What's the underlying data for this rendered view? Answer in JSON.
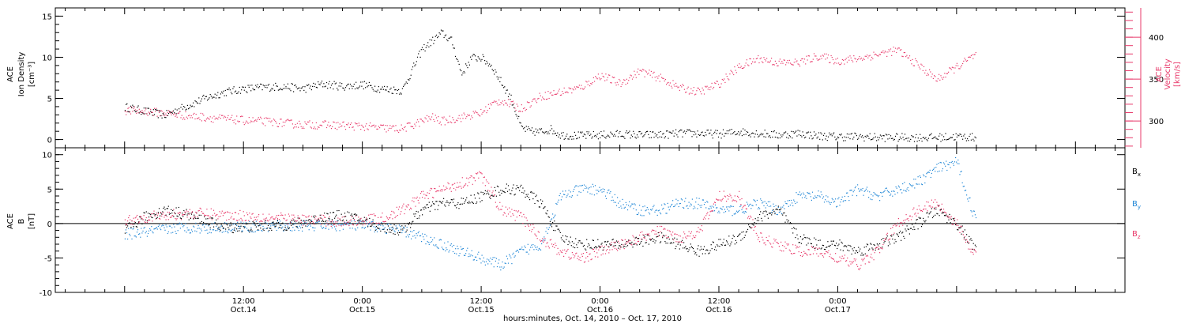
{
  "chart_data": [
    {
      "type": "scatter",
      "panel": "top",
      "y_left": {
        "label_lines": [
          "ACE",
          "Ion Density",
          "[cm⁻³]"
        ],
        "ylim": [
          -1,
          16
        ],
        "ticks": [
          0,
          5,
          10,
          15
        ]
      },
      "y_right": {
        "label_lines": [
          "ACE",
          "Velocity",
          "[km/s]"
        ],
        "ylim": [
          268,
          435
        ],
        "ticks": [
          300,
          350,
          400
        ],
        "color": "#e8396a"
      },
      "series": [
        {
          "axis": "left",
          "color": "#000000",
          "x_hours": [
            0,
            2,
            4,
            6,
            8,
            10,
            12,
            14,
            16,
            18,
            20,
            22,
            24,
            26,
            28,
            30,
            32,
            33,
            34,
            35,
            36,
            37,
            38,
            39,
            40,
            41,
            42,
            43,
            44,
            46,
            48,
            50,
            52,
            54,
            56,
            58,
            60,
            62,
            64,
            66,
            68,
            70,
            72,
            74,
            76,
            78,
            80,
            82,
            84,
            86
          ],
          "values": [
            4,
            3.5,
            3,
            4,
            5,
            5.8,
            6.2,
            6.4,
            6.5,
            6.2,
            6.8,
            6.5,
            6.7,
            6.2,
            6,
            11,
            13,
            12,
            8,
            10,
            10,
            9,
            7,
            5,
            1.5,
            1,
            1,
            1.3,
            0.6,
            0.5,
            0.6,
            0.7,
            0.6,
            0.6,
            0.8,
            0.8,
            0.7,
            1,
            0.8,
            0.6,
            0.8,
            0.5,
            0.4,
            0.4,
            0.3,
            0.3,
            0.3,
            0.3,
            0.4,
            0.3
          ]
        },
        {
          "axis": "right",
          "color": "#e8396a",
          "x_hours": [
            0,
            2,
            4,
            6,
            8,
            10,
            12,
            14,
            16,
            18,
            20,
            22,
            24,
            26,
            28,
            30,
            31,
            32,
            34,
            36,
            37,
            38,
            39,
            40,
            42,
            44,
            46,
            48,
            50,
            52,
            54,
            56,
            58,
            60,
            62,
            64,
            66,
            68,
            70,
            72,
            74,
            76,
            78,
            80,
            82,
            84,
            86
          ],
          "values": [
            313,
            312,
            310,
            307,
            305,
            303,
            301,
            300,
            298,
            296,
            296,
            295,
            294,
            292,
            291,
            300,
            305,
            300,
            305,
            310,
            320,
            325,
            320,
            315,
            330,
            335,
            340,
            355,
            345,
            360,
            352,
            340,
            335,
            345,
            365,
            375,
            370,
            370,
            378,
            372,
            375,
            380,
            385,
            368,
            350,
            365,
            380
          ]
        }
      ]
    },
    {
      "type": "scatter",
      "panel": "bottom",
      "y_left": {
        "label_lines": [
          "ACE",
          "B",
          "[nT]"
        ],
        "ylim": [
          -10,
          11
        ],
        "ticks": [
          -10,
          -5,
          0,
          5,
          10
        ]
      },
      "legend": [
        {
          "text": "B",
          "sub": "x",
          "color": "#000000"
        },
        {
          "text": "B",
          "sub": "y",
          "color": "#1f86d6"
        },
        {
          "text": "B",
          "sub": "z",
          "color": "#e8396a"
        }
      ],
      "series": [
        {
          "key": "Bx",
          "color": "#000000",
          "x_hours": [
            0,
            2,
            4,
            6,
            8,
            10,
            12,
            14,
            16,
            18,
            20,
            22,
            24,
            26,
            28,
            30,
            32,
            34,
            36,
            38,
            40,
            42,
            44,
            46,
            48,
            50,
            52,
            54,
            56,
            58,
            60,
            62,
            64,
            66,
            68,
            70,
            72,
            74,
            76,
            78,
            80,
            82,
            84,
            86
          ],
          "values": [
            -1,
            1,
            2,
            1.5,
            0.5,
            -0.5,
            -0.5,
            -0.3,
            -0.2,
            0.2,
            1,
            1.2,
            0.5,
            -0.5,
            -1,
            2,
            3,
            3,
            4,
            5,
            5,
            3,
            -2,
            -3,
            -3,
            -3,
            -2.5,
            -2,
            -3,
            -4,
            -3,
            -2,
            1,
            2,
            -2,
            -3,
            -3,
            -4,
            -3,
            -2,
            0,
            2,
            0,
            -4
          ]
        },
        {
          "key": "By",
          "color": "#1f86d6",
          "x_hours": [
            0,
            2,
            4,
            6,
            8,
            10,
            12,
            14,
            16,
            18,
            20,
            22,
            24,
            26,
            28,
            30,
            32,
            34,
            36,
            38,
            40,
            42,
            44,
            46,
            48,
            50,
            52,
            54,
            56,
            58,
            60,
            62,
            64,
            66,
            68,
            70,
            72,
            74,
            76,
            78,
            80,
            82,
            84,
            86
          ],
          "values": [
            -1.5,
            -1.2,
            -0.8,
            -0.5,
            -0.6,
            -0.5,
            -0.4,
            -0.4,
            -0.3,
            -0.3,
            -0.2,
            -0.2,
            -0.3,
            -0.5,
            -1,
            -2,
            -3,
            -4,
            -5,
            -6,
            -4,
            -3,
            4,
            5,
            5,
            3,
            2,
            2,
            3,
            3,
            2,
            2,
            3,
            2,
            4,
            4,
            3,
            5,
            4,
            5,
            6,
            8,
            9,
            0
          ]
        },
        {
          "key": "Bz",
          "color": "#e8396a",
          "x_hours": [
            0,
            2,
            4,
            6,
            8,
            10,
            12,
            14,
            16,
            18,
            20,
            22,
            24,
            26,
            28,
            30,
            32,
            34,
            36,
            38,
            40,
            42,
            44,
            46,
            48,
            50,
            52,
            54,
            56,
            58,
            60,
            62,
            64,
            66,
            68,
            70,
            72,
            74,
            76,
            78,
            80,
            82,
            84,
            86
          ],
          "values": [
            0.5,
            1,
            1.2,
            1.5,
            1.5,
            1.3,
            1.2,
            1,
            0.8,
            0.6,
            0.5,
            0.3,
            0.6,
            0.8,
            2,
            4,
            5,
            6,
            7,
            2,
            1,
            -2,
            -4,
            -5,
            -4,
            -3,
            -2,
            -1,
            -2,
            -1,
            4,
            4,
            -2,
            -3,
            -4,
            -4,
            -5,
            -6,
            -4,
            0,
            2,
            3,
            0,
            -5
          ]
        }
      ]
    }
  ],
  "x_axis": {
    "range_hours": [
      -7,
      101
    ],
    "major_ticks": [
      {
        "hours": 12,
        "lines": [
          "12:00",
          "Oct.14"
        ]
      },
      {
        "hours": 24,
        "lines": [
          "0:00",
          "Oct.15"
        ]
      },
      {
        "hours": 36,
        "lines": [
          "12:00",
          "Oct.15"
        ]
      },
      {
        "hours": 48,
        "lines": [
          "0:00",
          "Oct.16"
        ]
      },
      {
        "hours": 60,
        "lines": [
          "12:00",
          "Oct.16"
        ]
      },
      {
        "hours": 72,
        "lines": [
          "0:00",
          "Oct.17"
        ]
      }
    ],
    "title": "hours:minutes, Oct. 14, 2010 – Oct. 17, 2010"
  }
}
